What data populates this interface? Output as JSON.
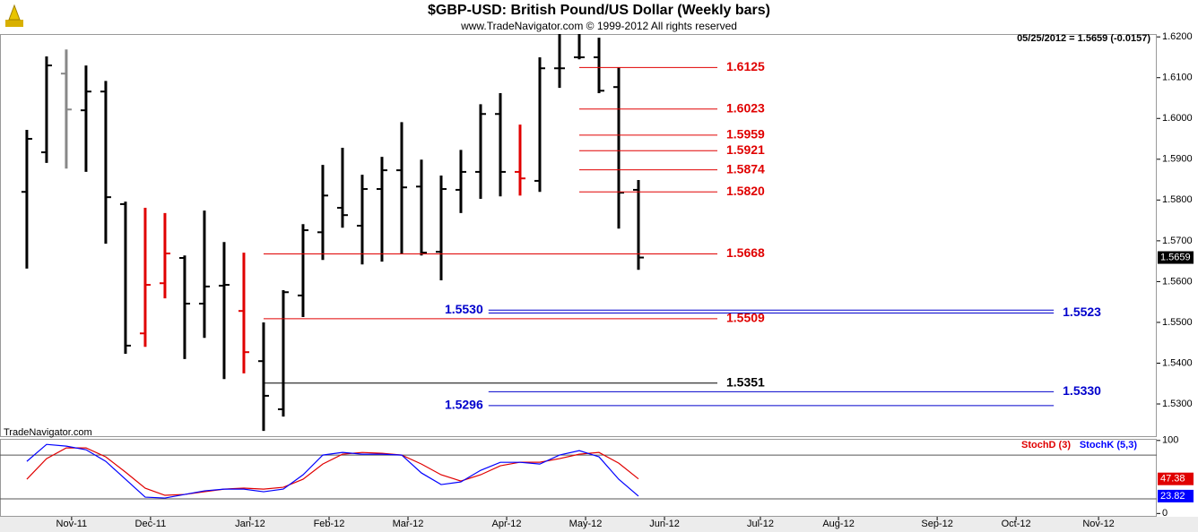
{
  "chart_data": [
    {
      "type": "ohlc",
      "title": "$GBP-USD:  British Pound/US Dollar  (Weekly bars)",
      "subtitle": "www.TradeNavigator.com © 1999-2012 All rights reserved",
      "status": "05/25/2012 = 1.5659 (-0.0157)",
      "watermark": "TradeNavigator.com",
      "x": [
        0,
        1,
        2,
        3,
        4,
        5,
        6,
        7,
        8,
        9,
        10,
        11,
        12,
        13,
        14,
        15,
        16,
        17,
        18,
        19,
        20,
        21,
        22,
        23,
        24,
        25,
        26,
        27,
        28,
        29,
        30,
        31
      ],
      "open": [
        1.582,
        1.5917,
        1.611,
        1.602,
        1.6066,
        1.579,
        1.5473,
        1.5596,
        1.5658,
        1.5546,
        1.559,
        1.5528,
        1.5405,
        1.5287,
        1.5566,
        1.5721,
        1.5781,
        1.5737,
        1.5827,
        1.5873,
        1.5833,
        1.5673,
        1.5825,
        1.5869,
        1.6011,
        1.5869,
        1.5847,
        1.6123,
        1.615,
        1.615,
        1.6077,
        1.5825
      ],
      "high": [
        1.5972,
        1.6152,
        1.6169,
        1.613,
        1.6092,
        1.5796,
        1.5781,
        1.5768,
        1.5664,
        1.5774,
        1.5697,
        1.5671,
        1.55,
        1.5579,
        1.5741,
        1.5886,
        1.5928,
        1.5862,
        1.5906,
        1.5991,
        1.5899,
        1.586,
        1.5923,
        1.6035,
        1.6062,
        1.5985,
        1.615,
        1.6213,
        1.6224,
        1.6198,
        1.6125,
        1.5849
      ],
      "low": [
        1.5632,
        1.5891,
        1.5877,
        1.5869,
        1.5693,
        1.5423,
        1.544,
        1.5559,
        1.541,
        1.5462,
        1.5361,
        1.5375,
        1.5234,
        1.5269,
        1.5513,
        1.5653,
        1.5732,
        1.5642,
        1.5649,
        1.5667,
        1.5664,
        1.5603,
        1.5768,
        1.5803,
        1.5809,
        1.5811,
        1.582,
        1.6075,
        1.6145,
        1.6062,
        1.573,
        1.5629
      ],
      "close": [
        1.595,
        1.613,
        1.6022,
        1.6066,
        1.5807,
        1.5443,
        1.5592,
        1.5669,
        1.5546,
        1.5588,
        1.5592,
        1.5427,
        1.532,
        1.5574,
        1.5726,
        1.5811,
        1.5763,
        1.5827,
        1.5873,
        1.5831,
        1.5671,
        1.5827,
        1.5869,
        1.6011,
        1.5869,
        1.5853,
        1.6123,
        1.6123,
        1.615,
        1.6068,
        1.5818,
        1.5659
      ],
      "colors": [
        "#000000",
        "#000000",
        "#888888",
        "#000000",
        "#000000",
        "#000000",
        "#e00000",
        "#e00000",
        "#000000",
        "#000000",
        "#000000",
        "#e00000",
        "#000000",
        "#000000",
        "#000000",
        "#000000",
        "#000000",
        "#000000",
        "#000000",
        "#000000",
        "#000000",
        "#000000",
        "#000000",
        "#000000",
        "#000000",
        "#e00000",
        "#000000",
        "#000000",
        "#000000",
        "#000000",
        "#000000",
        "#000000"
      ],
      "xlim": [
        -1.36,
        57.27
      ],
      "ylim": [
        1.5221,
        1.6207
      ],
      "yticks": [
        {
          "value": 1.53,
          "label": "1.5300"
        },
        {
          "value": 1.54,
          "label": "1.5400"
        },
        {
          "value": 1.55,
          "label": "1.5500"
        },
        {
          "value": 1.56,
          "label": "1.5600"
        },
        {
          "value": 1.57,
          "label": "1.5700"
        },
        {
          "value": 1.58,
          "label": "1.5800"
        },
        {
          "value": 1.59,
          "label": "1.5900"
        },
        {
          "value": 1.6,
          "label": "1.6000"
        },
        {
          "value": 1.61,
          "label": "1.6100"
        },
        {
          "value": 1.62,
          "label": "1.6200"
        }
      ],
      "levels": [
        {
          "value": 1.6125,
          "label": "1.6125",
          "color": "#e00000",
          "from": 28,
          "to": 35,
          "label_side": "right"
        },
        {
          "value": 1.6023,
          "label": "1.6023",
          "color": "#e00000",
          "from": 28,
          "to": 35,
          "label_side": "right"
        },
        {
          "value": 1.5959,
          "label": "1.5959",
          "color": "#e00000",
          "from": 28,
          "to": 35,
          "label_side": "right"
        },
        {
          "value": 1.5921,
          "label": "1.5921",
          "color": "#e00000",
          "from": 28,
          "to": 35,
          "label_side": "right"
        },
        {
          "value": 1.5874,
          "label": "1.5874",
          "color": "#e00000",
          "from": 28,
          "to": 35,
          "label_side": "right"
        },
        {
          "value": 1.582,
          "label": "1.5820",
          "color": "#e00000",
          "from": 28,
          "to": 35,
          "label_side": "right"
        },
        {
          "value": 1.5668,
          "label": "1.5668",
          "color": "#e00000",
          "from": 12,
          "to": 35,
          "label_side": "right"
        },
        {
          "value": 1.5509,
          "label": "1.5509",
          "color": "#e00000",
          "from": 12,
          "to": 35,
          "label_side": "right"
        },
        {
          "value": 1.5351,
          "label": "1.5351",
          "color": "#000000",
          "from": 12,
          "to": 35,
          "label_side": "right"
        },
        {
          "value": 1.553,
          "label": "1.5530",
          "color": "#0000cc",
          "from": 23.4,
          "to": 52.05,
          "label_side": "left"
        },
        {
          "value": 1.5523,
          "label": "1.5523",
          "color": "#0000cc",
          "from": 23.4,
          "to": 52.05,
          "label_side": "right"
        },
        {
          "value": 1.533,
          "label": "1.5330",
          "color": "#0000cc",
          "from": 23.4,
          "to": 52.05,
          "label_side": "right"
        },
        {
          "value": 1.5296,
          "label": "1.5296",
          "color": "#0000cc",
          "from": 23.4,
          "to": 52.05,
          "label_side": "left"
        }
      ]
    },
    {
      "type": "line",
      "x": [
        0,
        1,
        2,
        3,
        4,
        5,
        6,
        7,
        8,
        9,
        10,
        11,
        12,
        13,
        14,
        15,
        16,
        17,
        18,
        19,
        20,
        21,
        22,
        23,
        24,
        25,
        26,
        27,
        28,
        29,
        30,
        31
      ],
      "series": [
        {
          "name": "StochD (3)",
          "color": "#e00000",
          "values": [
            46.9,
            75.1,
            89.8,
            89.8,
            77.5,
            56.7,
            34.7,
            24.9,
            26.1,
            29.8,
            33.4,
            34.7,
            33.4,
            35.9,
            46.9,
            67.7,
            81.2,
            83.6,
            82.4,
            80.0,
            67.7,
            53.0,
            44.4,
            53.0,
            65.3,
            70.2,
            70.2,
            75.1,
            81.2,
            83.6,
            68.9,
            47.38
          ]
        },
        {
          "name": "StochK (5,3)",
          "color": "#0000ff",
          "values": [
            71.4,
            94.6,
            92.2,
            87.3,
            71.4,
            46.9,
            22.4,
            21.2,
            26.1,
            31.0,
            33.4,
            33.4,
            29.8,
            33.4,
            53.0,
            80.0,
            83.6,
            81.2,
            81.2,
            80.0,
            55.5,
            39.6,
            43.2,
            59.1,
            70.1,
            70.1,
            67.7,
            80.0,
            86.1,
            77.6,
            46.9,
            23.82
          ]
        }
      ],
      "hlines": [
        20,
        80
      ],
      "xlim": [
        -1.36,
        57.27
      ],
      "ylim": [
        -4.5,
        102.2
      ],
      "yticks": [
        0,
        100
      ],
      "xticks": [
        {
          "value": 2.27,
          "label": "Nov-11"
        },
        {
          "value": 6.27,
          "label": "Dec-11"
        },
        {
          "value": 11.32,
          "label": "Jan-12"
        },
        {
          "value": 15.32,
          "label": "Feb-12"
        },
        {
          "value": 19.32,
          "label": "Mar-12"
        },
        {
          "value": 24.32,
          "label": "Apr-12"
        },
        {
          "value": 28.32,
          "label": "May-12"
        },
        {
          "value": 32.32,
          "label": "Jun-12"
        },
        {
          "value": 37.18,
          "label": "Jul-12"
        },
        {
          "value": 41.14,
          "label": "Aug-12"
        },
        {
          "value": 46.14,
          "label": "Sep-12"
        },
        {
          "value": 50.14,
          "label": "Oct-12"
        },
        {
          "value": 54.32,
          "label": "Nov-12"
        }
      ]
    }
  ]
}
